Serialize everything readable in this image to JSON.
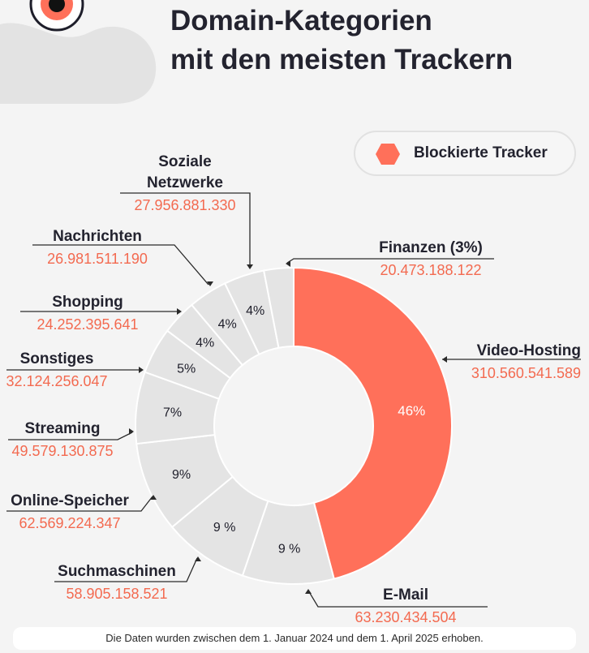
{
  "title": {
    "line1": "Domain-Kategorien",
    "line2": "mit den meisten Trackern"
  },
  "legend": {
    "label": "Blockierte Tracker"
  },
  "footer": "Die Daten wurden zwischen dem 1. Januar 2024 und dem 1. April 2025 erhoben.",
  "colors": {
    "highlight": "#ff705a",
    "segment": "#e4e4e4",
    "label_value": "#f36a50",
    "text": "#23232f"
  },
  "chart_data": {
    "type": "pie",
    "donut": true,
    "legend_position": "top-right",
    "slices": [
      {
        "name": "Video-Hosting",
        "value": 310560541589,
        "value_label": "310.560.541.589",
        "percent_label": "46%",
        "highlight": true
      },
      {
        "name": "E-Mail",
        "value": 63230434504,
        "value_label": "63.230.434.504",
        "percent_label": "9 %"
      },
      {
        "name": "Suchmaschinen",
        "value": 58905158521,
        "value_label": "58.905.158.521",
        "percent_label": "9 %"
      },
      {
        "name": "Online-Speicher",
        "value": 62569224347,
        "value_label": "62.569.224.347",
        "percent_label": "9%"
      },
      {
        "name": "Streaming",
        "value": 49579130875,
        "value_label": "49.579.130.875",
        "percent_label": "7%"
      },
      {
        "name": "Sonstiges",
        "value": 32124256047,
        "value_label": "32.124.256.047",
        "percent_label": "5%"
      },
      {
        "name": "Shopping",
        "value": 24252395641,
        "value_label": "24.252.395.641",
        "percent_label": "4%"
      },
      {
        "name": "Nachrichten",
        "value": 26981511190,
        "value_label": "26.981.511.190",
        "percent_label": "4%"
      },
      {
        "name": "Soziale Netzwerke",
        "value": 27956881330,
        "value_label": "27.956.881.330",
        "percent_label": "4%"
      },
      {
        "name": "Finanzen (3%)",
        "value": 20473188122,
        "value_label": "20.473.188.122",
        "percent_label": ""
      }
    ]
  }
}
